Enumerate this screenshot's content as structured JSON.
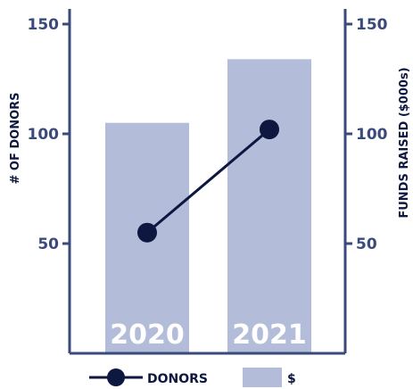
{
  "chart_data": {
    "type": "bar",
    "categories": [
      "2020",
      "2021"
    ],
    "series": [
      {
        "name": "$",
        "type": "bar",
        "axis": "right",
        "values": [
          105,
          134
        ]
      },
      {
        "name": "DONORS",
        "type": "line",
        "axis": "left",
        "values": [
          55,
          102
        ]
      }
    ],
    "y_left_label": "# OF DONORS",
    "y_right_label": "FUNDS RAISED ($000s)",
    "ylim_left": [
      0,
      160
    ],
    "ylim_right": [
      0,
      160
    ],
    "y_ticks_left": [
      "50",
      "100",
      "150"
    ],
    "y_ticks_right": [
      "50",
      "100",
      "150"
    ],
    "grid": false,
    "legend_position": "bottom",
    "legend": {
      "line_label": "DONORS",
      "bar_label": "$"
    }
  },
  "colors": {
    "axis": "#3a4a7a",
    "bar": "#b3bcd8",
    "line": "#0d1740",
    "category_label": "#ffffff"
  }
}
